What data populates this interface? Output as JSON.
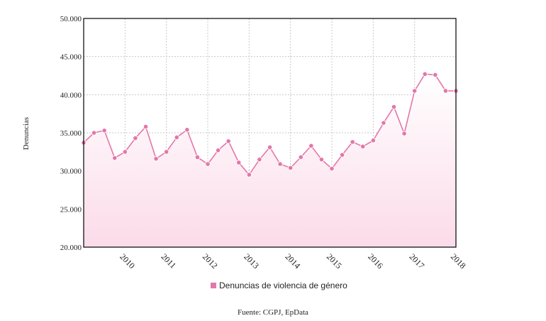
{
  "chart_data": {
    "type": "area",
    "ylabel": "Denuncias",
    "ylim": [
      20000,
      50000
    ],
    "yticks": [
      20000,
      25000,
      30000,
      35000,
      40000,
      45000,
      50000
    ],
    "ytick_labels": [
      "20.000",
      "25.000",
      "30.000",
      "35.000",
      "40.000",
      "45.000",
      "50.000"
    ],
    "xlim": [
      2009.0,
      2018.0
    ],
    "xticks": [
      2010,
      2011,
      2012,
      2013,
      2014,
      2015,
      2016,
      2017,
      2018
    ],
    "xtick_labels": [
      "2010",
      "2011",
      "2012",
      "2013",
      "2014",
      "2015",
      "2016",
      "2017",
      "2018"
    ],
    "grid": true,
    "legend_position": "bottom-center",
    "series": [
      {
        "name": "Denuncias de violencia de género",
        "color": "#e377a9",
        "x": [
          2009.0,
          2009.25,
          2009.5,
          2009.75,
          2010.0,
          2010.25,
          2010.5,
          2010.75,
          2011.0,
          2011.25,
          2011.5,
          2011.75,
          2012.0,
          2012.25,
          2012.5,
          2012.75,
          2013.0,
          2013.25,
          2013.5,
          2013.75,
          2014.0,
          2014.25,
          2014.5,
          2014.75,
          2015.0,
          2015.25,
          2015.5,
          2015.75,
          2016.0,
          2016.25,
          2016.5,
          2016.75,
          2017.0,
          2017.25,
          2017.5,
          2017.75,
          2018.0
        ],
        "values": [
          33700,
          35000,
          35300,
          31700,
          32500,
          34300,
          35800,
          31600,
          32500,
          34400,
          35400,
          31800,
          30900,
          32700,
          33900,
          31100,
          29500,
          31500,
          33100,
          30900,
          30400,
          31800,
          33300,
          31500,
          30300,
          32100,
          33800,
          33200,
          34000,
          36300,
          38400,
          34900,
          40500,
          42700,
          42600,
          40500,
          40500
        ]
      }
    ]
  },
  "source": "Fuente: CGPJ, EpData"
}
